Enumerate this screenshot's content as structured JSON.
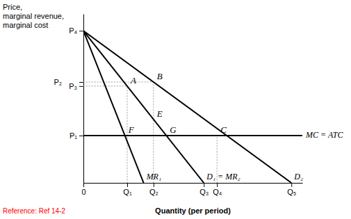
{
  "chart_data": {
    "type": "line",
    "xlabel": "Quantity (per period)",
    "ylabel": [
      "Price,",
      "marginal revenue,",
      "marginal cost"
    ],
    "footnote": {
      "text": "Reference: Ref 14-2",
      "color": "red"
    },
    "background": "#ffffff",
    "xlim": [
      0,
      10
    ],
    "ylim": [
      0,
      10
    ],
    "xticks": [
      0,
      {
        "value": 2.0,
        "label": "Q₁"
      },
      {
        "value": 3.2,
        "label": "Q₂"
      },
      {
        "value": 5.5,
        "label": "Q₃"
      },
      {
        "value": 6.1,
        "label": "Q₄"
      },
      {
        "value": 9.5,
        "label": "Q₅"
      }
    ],
    "yticks": [
      {
        "value": 2.8,
        "label": "P₁"
      },
      {
        "value": 5.727272727272727,
        "label": "P₃"
      },
      {
        "value": 5.968421052631579,
        "label": "P₂"
      },
      {
        "value": 9.0,
        "label": "P₄"
      }
    ],
    "grid": false,
    "series": [
      {
        "name": "D₂",
        "color": "#000000",
        "x": [
          0,
          9.5
        ],
        "values": [
          9.0,
          0
        ]
      },
      {
        "name": "D₁ = MR₂",
        "color": "#000000",
        "x": [
          0,
          5.5
        ],
        "values": [
          9.0,
          0
        ]
      },
      {
        "name": "MR₁",
        "color": "#000000",
        "x": [
          0,
          2.75
        ],
        "values": [
          9.0,
          0
        ]
      },
      {
        "name": "MC = ATC",
        "color": "#000000",
        "x": [
          0,
          10
        ],
        "values": [
          2.8,
          2.8
        ]
      }
    ],
    "guides": [
      {
        "color": "#aaaaaa",
        "line_style": "dotted",
        "x": [
          2.0,
          2.0
        ],
        "values": [
          0,
          5.727272727272727
        ]
      },
      {
        "color": "#aaaaaa",
        "line_style": "dotted",
        "x": [
          3.2,
          3.2
        ],
        "values": [
          0,
          5.968421052631579
        ]
      },
      {
        "color": "#aaaaaa",
        "line_style": "dotted",
        "x": [
          6.1,
          6.1
        ],
        "values": [
          0,
          2.8
        ]
      },
      {
        "color": "#aaaaaa",
        "line_style": "dotted",
        "x": [
          0,
          2.0
        ],
        "values": [
          5.727272727272727,
          5.727272727272727
        ]
      },
      {
        "color": "#aaaaaa",
        "line_style": "dotted",
        "x": [
          0,
          3.2
        ],
        "values": [
          5.968421052631579,
          5.968421052631579
        ]
      }
    ],
    "annotations": [
      {
        "text": "A",
        "x": 2.0,
        "y": 5.727272727272727
      },
      {
        "text": "B",
        "x": 3.2,
        "y": 5.968421052631579
      },
      {
        "text": "C",
        "x": 6.1,
        "y": 2.8
      },
      {
        "text": "E",
        "x": 3.2,
        "y": 3.763636363636364
      },
      {
        "text": "F",
        "x": 1.8944444444444444,
        "y": 2.8
      },
      {
        "text": "G",
        "x": 3.788888888888889,
        "y": 2.8
      }
    ]
  }
}
